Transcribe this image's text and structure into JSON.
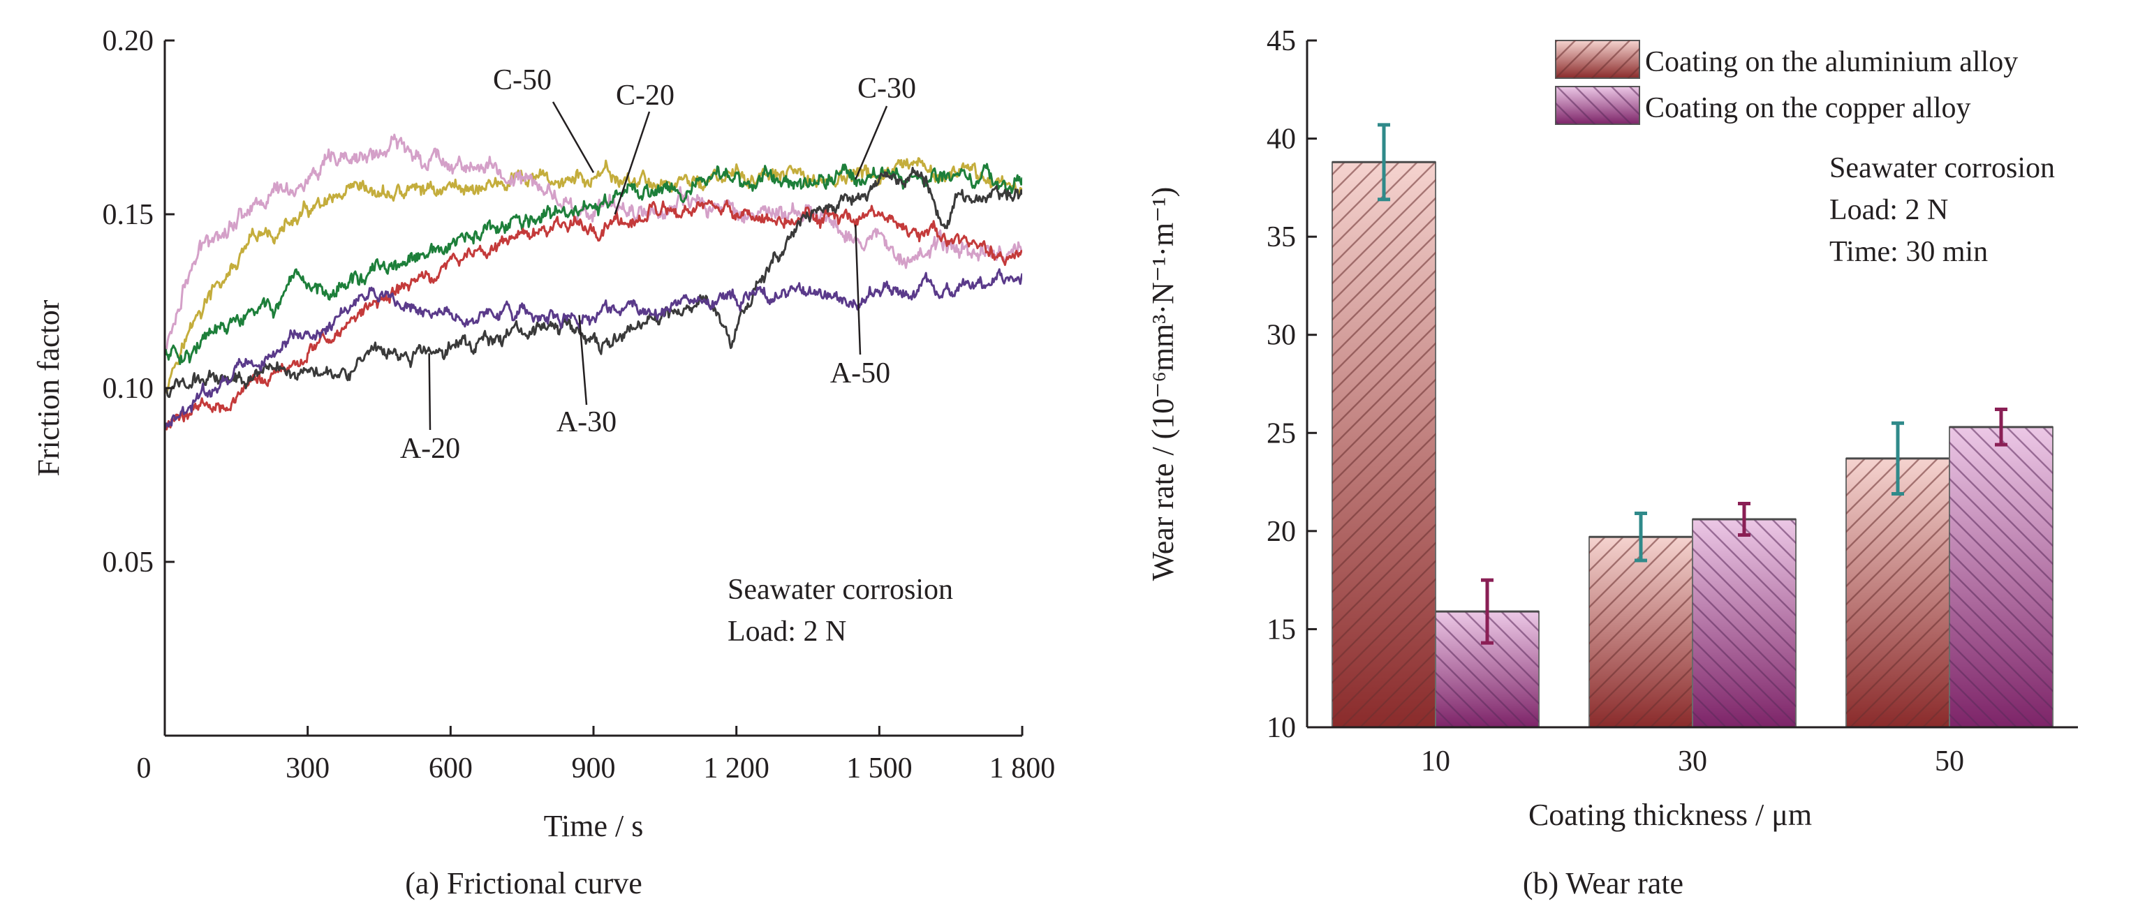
{
  "chart_data": [
    {
      "type": "line",
      "caption": "(a) Frictional curve",
      "xlabel": "Time / s",
      "ylabel": "Friction factor",
      "xlim": [
        0,
        1800
      ],
      "ylim": [
        0,
        0.2
      ],
      "x_ticks": [
        0,
        300,
        600,
        900,
        1200,
        1500,
        1800
      ],
      "x_tick_labels": [
        "0",
        "300",
        "600",
        "900",
        "1 200",
        "1 500",
        "1 800"
      ],
      "y_ticks": [
        0.05,
        0.1,
        0.15,
        0.2
      ],
      "y_tick_labels": [
        "0.05",
        "0.10",
        "0.15",
        "0.20"
      ],
      "grid": false,
      "annotation": [
        "Seawater corrosion",
        "Load: 2 N"
      ],
      "series": [
        {
          "name": "C-50",
          "color": "#c4ad3c",
          "noise": 0.0025,
          "x": [
            0,
            30,
            90,
            180,
            300,
            450,
            600,
            750,
            900,
            1050,
            1200,
            1350,
            1500,
            1650,
            1800
          ],
          "y": [
            0.1,
            0.112,
            0.125,
            0.14,
            0.15,
            0.155,
            0.158,
            0.159,
            0.16,
            0.159,
            0.16,
            0.16,
            0.161,
            0.161,
            0.159
          ]
        },
        {
          "name": "C-20",
          "color": "#d4a0c8",
          "noise": 0.0028,
          "x": [
            0,
            40,
            100,
            200,
            300,
            400,
            480,
            600,
            750,
            900,
            1000,
            1100,
            1200,
            1300,
            1400,
            1500,
            1600,
            1700,
            1800
          ],
          "y": [
            0.11,
            0.13,
            0.145,
            0.155,
            0.16,
            0.165,
            0.169,
            0.166,
            0.16,
            0.15,
            0.152,
            0.152,
            0.152,
            0.15,
            0.148,
            0.142,
            0.14,
            0.14,
            0.14
          ]
        },
        {
          "name": "C-30",
          "color": "#1d7f3a",
          "noise": 0.0025,
          "x": [
            0,
            60,
            150,
            250,
            350,
            450,
            550,
            650,
            750,
            850,
            950,
            1050,
            1200,
            1350,
            1500,
            1650,
            1800
          ],
          "y": [
            0.11,
            0.112,
            0.118,
            0.125,
            0.13,
            0.133,
            0.137,
            0.143,
            0.147,
            0.15,
            0.154,
            0.158,
            0.16,
            0.161,
            0.162,
            0.161,
            0.159
          ]
        },
        {
          "name": "A-50",
          "color": "#c43a3a",
          "noise": 0.0022,
          "x": [
            0,
            60,
            150,
            250,
            350,
            450,
            550,
            650,
            750,
            850,
            950,
            1050,
            1200,
            1350,
            1500,
            1650,
            1800
          ],
          "y": [
            0.088,
            0.095,
            0.098,
            0.105,
            0.115,
            0.125,
            0.132,
            0.139,
            0.144,
            0.146,
            0.148,
            0.15,
            0.15,
            0.149,
            0.147,
            0.142,
            0.138
          ]
        },
        {
          "name": "A-20",
          "color": "#3a3a3a",
          "noise": 0.0022,
          "x": [
            0,
            60,
            150,
            250,
            350,
            450,
            550,
            650,
            750,
            850,
            900,
            950,
            1050,
            1150,
            1190,
            1210,
            1250,
            1300,
            1350,
            1400,
            1450,
            1500,
            1550,
            1600,
            1640,
            1660,
            1700,
            1750,
            1800
          ],
          "y": [
            0.1,
            0.102,
            0.104,
            0.106,
            0.106,
            0.108,
            0.11,
            0.114,
            0.116,
            0.118,
            0.112,
            0.114,
            0.12,
            0.126,
            0.112,
            0.122,
            0.132,
            0.14,
            0.148,
            0.152,
            0.155,
            0.158,
            0.16,
            0.16,
            0.148,
            0.158,
            0.152,
            0.155,
            0.155
          ]
        },
        {
          "name": "A-30",
          "color": "#5a3a8a",
          "noise": 0.0022,
          "x": [
            0,
            60,
            150,
            250,
            350,
            400,
            450,
            550,
            650,
            750,
            850,
            950,
            1050,
            1150,
            1250,
            1350,
            1450,
            1550,
            1650,
            1750,
            1800
          ],
          "y": [
            0.088,
            0.095,
            0.105,
            0.112,
            0.118,
            0.124,
            0.126,
            0.122,
            0.12,
            0.122,
            0.12,
            0.122,
            0.122,
            0.125,
            0.126,
            0.126,
            0.127,
            0.128,
            0.128,
            0.131,
            0.132
          ]
        }
      ],
      "series_labels": [
        {
          "text": "C-50",
          "target": [
            900,
            0.162
          ]
        },
        {
          "text": "C-20",
          "target": [
            945,
            0.15
          ]
        },
        {
          "text": "C-30",
          "target": [
            1450,
            0.16
          ]
        },
        {
          "text": "A-50",
          "target": [
            1450,
            0.147
          ]
        },
        {
          "text": "A-20",
          "target": [
            555,
            0.11
          ]
        },
        {
          "text": "A-30",
          "target": [
            870,
            0.121
          ]
        }
      ]
    },
    {
      "type": "bar",
      "caption": "(b) Wear rate",
      "xlabel": "Coating thickness / μm",
      "ylabel": "Wear rate / (10⁻⁶mm³·N⁻¹·m⁻¹)",
      "ylim": [
        10,
        45
      ],
      "y_ticks": [
        10,
        15,
        20,
        25,
        30,
        35,
        40,
        45
      ],
      "categories": [
        "10",
        "30",
        "50"
      ],
      "grid": false,
      "legend_position": "top-right",
      "annotation": [
        "Seawater corrosion",
        "Load: 2 N",
        "Time: 30 min"
      ],
      "series": [
        {
          "name": "Coating on the aluminium alloy",
          "values": [
            38.8,
            19.7,
            23.7
          ],
          "errors": [
            1.9,
            1.2,
            1.8
          ],
          "color_light": "#f5d3cf",
          "color_dark": "#8a2b2b",
          "hatch": "forward",
          "error_color": "#2f8a8a"
        },
        {
          "name": "Coating on the copper alloy",
          "values": [
            15.9,
            20.6,
            25.3
          ],
          "errors": [
            1.6,
            0.8,
            0.9
          ],
          "color_light": "#ecc8e6",
          "color_dark": "#7d2468",
          "hatch": "back",
          "error_color": "#8a1f55"
        }
      ]
    }
  ]
}
